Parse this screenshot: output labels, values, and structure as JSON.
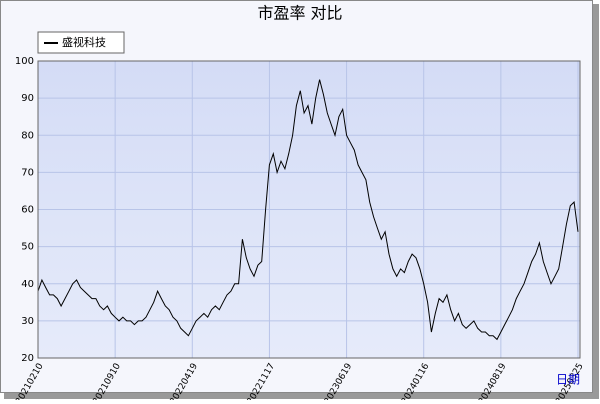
{
  "chart_data": {
    "type": "line",
    "title": "市盈率  对比",
    "x_label": "日期",
    "categories": [
      "20210210",
      null,
      null,
      null,
      null,
      null,
      null,
      null,
      null,
      null,
      null,
      null,
      null,
      null,
      null,
      null,
      null,
      null,
      null,
      null,
      "20210910",
      null,
      null,
      null,
      null,
      null,
      null,
      null,
      null,
      null,
      null,
      null,
      null,
      null,
      null,
      null,
      null,
      null,
      null,
      null,
      "20220419",
      null,
      null,
      null,
      null,
      null,
      null,
      null,
      null,
      null,
      null,
      null,
      null,
      null,
      null,
      null,
      null,
      null,
      null,
      null,
      "20221117",
      null,
      null,
      null,
      null,
      null,
      null,
      null,
      null,
      null,
      null,
      null,
      null,
      null,
      null,
      null,
      null,
      null,
      null,
      null,
      "20230619",
      null,
      null,
      null,
      null,
      null,
      null,
      null,
      null,
      null,
      null,
      null,
      null,
      null,
      null,
      null,
      null,
      null,
      null,
      null,
      "20240116",
      null,
      null,
      null,
      null,
      null,
      null,
      null,
      null,
      null,
      null,
      null,
      null,
      null,
      null,
      null,
      null,
      null,
      null,
      null,
      "20240819",
      null,
      null,
      null,
      null,
      null,
      null,
      null,
      null,
      null,
      null,
      null,
      null,
      null,
      null,
      null,
      null,
      null,
      null,
      null,
      "20250325"
    ],
    "series": [
      {
        "name": "盛视科技",
        "color": "#000000",
        "values": [
          38,
          41,
          39,
          37,
          37,
          36,
          34,
          36,
          38,
          40,
          41,
          39,
          38,
          37,
          36,
          36,
          34,
          33,
          34,
          32,
          31,
          30,
          31,
          30,
          30,
          29,
          30,
          30,
          31,
          33,
          35,
          38,
          36,
          34,
          33,
          31,
          30,
          28,
          27,
          26,
          28,
          30,
          31,
          32,
          31,
          33,
          34,
          33,
          35,
          37,
          38,
          40,
          40,
          52,
          47,
          44,
          42,
          45,
          46,
          60,
          72,
          75,
          70,
          73,
          71,
          75,
          80,
          88,
          92,
          86,
          88,
          83,
          90,
          95,
          91,
          86,
          83,
          80,
          85,
          87,
          80,
          78,
          76,
          72,
          70,
          68,
          62,
          58,
          55,
          52,
          54,
          48,
          44,
          42,
          44,
          43,
          46,
          48,
          47,
          44,
          40,
          35,
          27,
          32,
          36,
          35,
          37,
          33,
          30,
          32,
          29,
          28,
          29,
          30,
          28,
          27,
          27,
          26,
          26,
          25,
          27,
          29,
          31,
          33,
          36,
          38,
          40,
          43,
          46,
          48,
          51,
          46,
          43,
          40,
          42,
          44,
          50,
          56,
          61,
          62,
          54
        ]
      }
    ],
    "ylim": [
      20,
      100
    ],
    "yticks": [
      20,
      30,
      40,
      50,
      60,
      70,
      80,
      90,
      100
    ],
    "grid": true
  }
}
